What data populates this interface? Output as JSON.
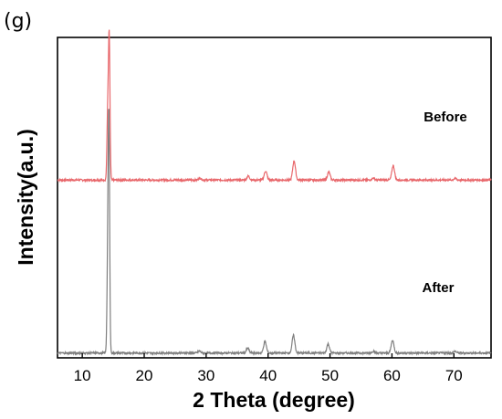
{
  "panel_label": "(g)",
  "chart_data": {
    "type": "line",
    "xlabel": "2 Theta (degree)",
    "ylabel": "Intensity(a.u.)",
    "xlim": [
      6,
      76
    ],
    "x_ticks": [
      10,
      20,
      30,
      40,
      50,
      60,
      70
    ],
    "x_tick_labels": [
      "10",
      "20",
      "30",
      "40",
      "50",
      "60",
      "70"
    ],
    "y_ticks_shown": false,
    "grid": false,
    "legend": "none",
    "series": [
      {
        "name": "Before",
        "color": "#e8676b",
        "baseline": 0.555,
        "peaks": [
          [
            14.35,
            0.445
          ],
          [
            14.1,
            0.2
          ],
          [
            29.0,
            0.006
          ],
          [
            36.8,
            0.012
          ],
          [
            39.6,
            0.028
          ],
          [
            44.2,
            0.06
          ],
          [
            49.8,
            0.025
          ],
          [
            57.0,
            0.006
          ],
          [
            60.2,
            0.045
          ],
          [
            70.2,
            0.005
          ]
        ]
      },
      {
        "name": "After",
        "color": "#7f7f7f",
        "baseline": 0.015,
        "peaks": [
          [
            14.3,
            0.7
          ],
          [
            14.1,
            0.25
          ],
          [
            28.9,
            0.006
          ],
          [
            36.7,
            0.015
          ],
          [
            39.5,
            0.036
          ],
          [
            44.1,
            0.055
          ],
          [
            49.7,
            0.028
          ],
          [
            57.0,
            0.006
          ],
          [
            60.1,
            0.04
          ],
          [
            70.2,
            0.005
          ]
        ]
      }
    ]
  }
}
